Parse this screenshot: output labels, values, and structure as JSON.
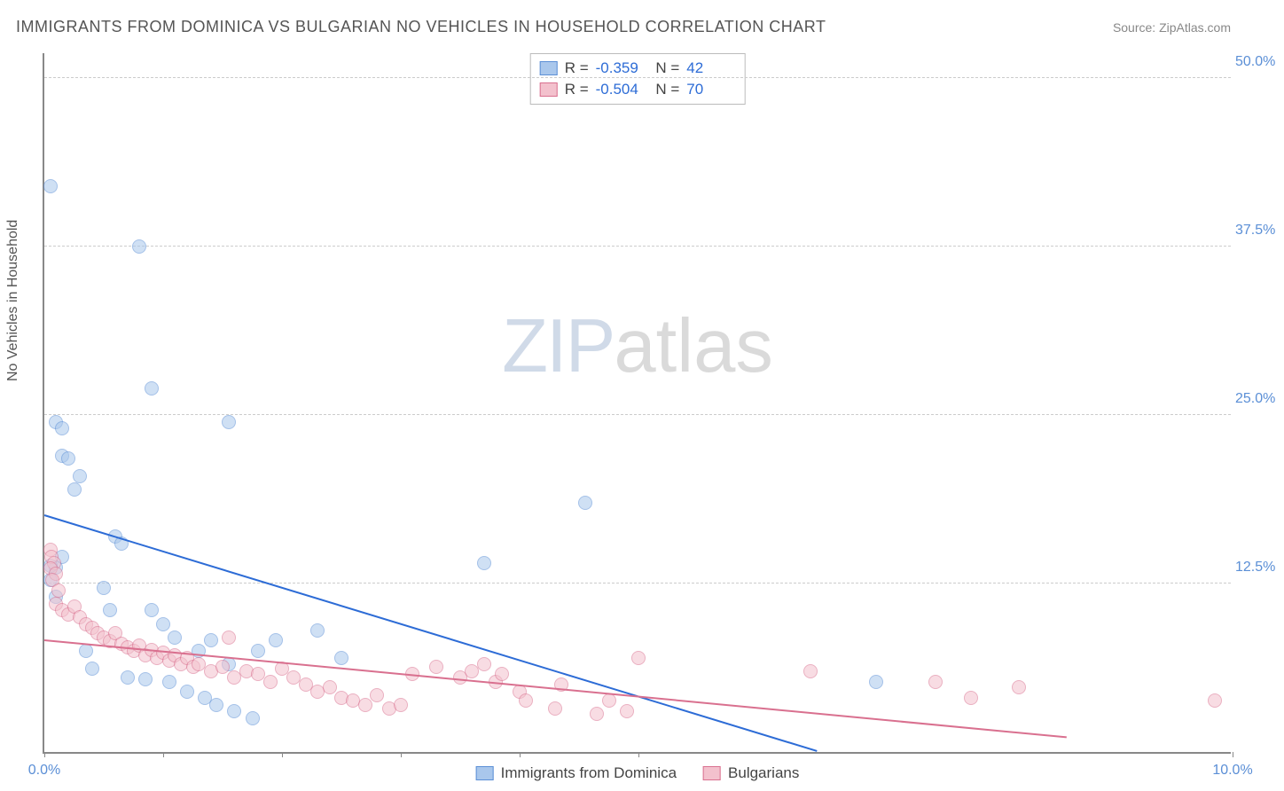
{
  "title": "IMMIGRANTS FROM DOMINICA VS BULGARIAN NO VEHICLES IN HOUSEHOLD CORRELATION CHART",
  "source": "Source: ZipAtlas.com",
  "ylabel": "No Vehicles in Household",
  "watermark": {
    "part1": "ZIP",
    "part2": "atlas"
  },
  "chart": {
    "type": "scatter",
    "xlim": [
      0,
      10
    ],
    "ylim": [
      0,
      52
    ],
    "xticks": [
      0,
      1,
      2,
      3,
      4,
      5,
      10
    ],
    "xtick_labels": {
      "0": "0.0%",
      "10": "10.0%"
    },
    "yticks": [
      12.5,
      25,
      37.5,
      50
    ],
    "ytick_labels": [
      "12.5%",
      "25.0%",
      "37.5%",
      "50.0%"
    ],
    "grid_color": "#cccccc",
    "axis_color": "#888888",
    "background_color": "#ffffff",
    "point_radius": 8,
    "point_opacity": 0.55,
    "series": [
      {
        "name": "Immigrants from Dominica",
        "color_fill": "#a9c7ec",
        "color_stroke": "#5b8fd6",
        "R": "-0.359",
        "N": "42",
        "trend": {
          "x1": 0,
          "y1": 17.5,
          "x2": 6.5,
          "y2": 0,
          "color": "#2d6cd6",
          "width": 2
        },
        "points": [
          [
            0.05,
            42
          ],
          [
            0.8,
            37.5
          ],
          [
            0.9,
            27
          ],
          [
            0.1,
            24.5
          ],
          [
            0.15,
            24
          ],
          [
            1.55,
            24.5
          ],
          [
            0.15,
            22
          ],
          [
            0.2,
            21.8
          ],
          [
            0.3,
            20.5
          ],
          [
            0.25,
            19.5
          ],
          [
            0.15,
            14.5
          ],
          [
            0.6,
            16
          ],
          [
            0.65,
            15.5
          ],
          [
            4.55,
            18.5
          ],
          [
            3.7,
            14
          ],
          [
            0.1,
            13.7
          ],
          [
            0.05,
            13.8
          ],
          [
            0.05,
            12.8
          ],
          [
            0.1,
            11.5
          ],
          [
            0.55,
            10.5
          ],
          [
            0.9,
            10.5
          ],
          [
            1.0,
            9.5
          ],
          [
            1.1,
            8.5
          ],
          [
            1.3,
            7.5
          ],
          [
            1.4,
            8.3
          ],
          [
            1.55,
            6.5
          ],
          [
            1.8,
            7.5
          ],
          [
            1.95,
            8.3
          ],
          [
            0.35,
            7.5
          ],
          [
            0.4,
            6.2
          ],
          [
            0.7,
            5.5
          ],
          [
            0.85,
            5.4
          ],
          [
            1.05,
            5.2
          ],
          [
            1.2,
            4.5
          ],
          [
            1.35,
            4.0
          ],
          [
            1.45,
            3.5
          ],
          [
            1.6,
            3.0
          ],
          [
            1.75,
            2.5
          ],
          [
            7.0,
            5.2
          ],
          [
            2.3,
            9.0
          ],
          [
            2.5,
            7.0
          ],
          [
            0.5,
            12.2
          ]
        ]
      },
      {
        "name": "Bulgarians",
        "color_fill": "#f3c1cd",
        "color_stroke": "#d9708f",
        "R": "-0.504",
        "N": "70",
        "trend": {
          "x1": 0,
          "y1": 8.2,
          "x2": 8.6,
          "y2": 1.0,
          "color": "#d9708f",
          "width": 2
        },
        "points": [
          [
            0.05,
            15
          ],
          [
            0.06,
            14.5
          ],
          [
            0.08,
            14
          ],
          [
            0.05,
            13.6
          ],
          [
            0.1,
            13.2
          ],
          [
            0.07,
            12.8
          ],
          [
            0.1,
            11
          ],
          [
            0.15,
            10.5
          ],
          [
            0.2,
            10.2
          ],
          [
            0.25,
            10.8
          ],
          [
            0.3,
            10
          ],
          [
            0.35,
            9.5
          ],
          [
            0.4,
            9.2
          ],
          [
            0.45,
            8.8
          ],
          [
            0.5,
            8.5
          ],
          [
            0.55,
            8.2
          ],
          [
            0.6,
            8.8
          ],
          [
            0.65,
            8.0
          ],
          [
            0.7,
            7.8
          ],
          [
            0.75,
            7.5
          ],
          [
            0.8,
            7.9
          ],
          [
            0.85,
            7.2
          ],
          [
            0.9,
            7.6
          ],
          [
            0.95,
            7.0
          ],
          [
            1.0,
            7.4
          ],
          [
            1.05,
            6.8
          ],
          [
            1.1,
            7.2
          ],
          [
            1.15,
            6.5
          ],
          [
            1.2,
            7.0
          ],
          [
            1.25,
            6.3
          ],
          [
            1.3,
            6.5
          ],
          [
            1.4,
            6.0
          ],
          [
            1.5,
            6.3
          ],
          [
            1.6,
            5.5
          ],
          [
            1.7,
            6.0
          ],
          [
            1.8,
            5.8
          ],
          [
            1.9,
            5.2
          ],
          [
            2.0,
            6.2
          ],
          [
            2.1,
            5.5
          ],
          [
            2.2,
            5.0
          ],
          [
            2.3,
            4.5
          ],
          [
            2.4,
            4.8
          ],
          [
            2.5,
            4.0
          ],
          [
            2.6,
            3.8
          ],
          [
            2.7,
            3.5
          ],
          [
            2.8,
            4.2
          ],
          [
            2.9,
            3.2
          ],
          [
            3.0,
            3.5
          ],
          [
            3.1,
            5.8
          ],
          [
            3.3,
            6.3
          ],
          [
            3.5,
            5.5
          ],
          [
            3.6,
            6.0
          ],
          [
            3.7,
            6.5
          ],
          [
            3.8,
            5.2
          ],
          [
            3.85,
            5.8
          ],
          [
            4.0,
            4.5
          ],
          [
            4.05,
            3.8
          ],
          [
            4.3,
            3.2
          ],
          [
            4.35,
            5.0
          ],
          [
            4.65,
            2.8
          ],
          [
            4.75,
            3.8
          ],
          [
            4.9,
            3.0
          ],
          [
            5.0,
            7.0
          ],
          [
            6.45,
            6.0
          ],
          [
            7.5,
            5.2
          ],
          [
            7.8,
            4.0
          ],
          [
            8.2,
            4.8
          ],
          [
            9.85,
            3.8
          ],
          [
            1.55,
            8.5
          ],
          [
            0.12,
            12.0
          ]
        ]
      }
    ]
  },
  "legend": [
    {
      "label": "Immigrants from Dominica",
      "fill": "#a9c7ec",
      "stroke": "#5b8fd6"
    },
    {
      "label": "Bulgarians",
      "fill": "#f3c1cd",
      "stroke": "#d9708f"
    }
  ]
}
